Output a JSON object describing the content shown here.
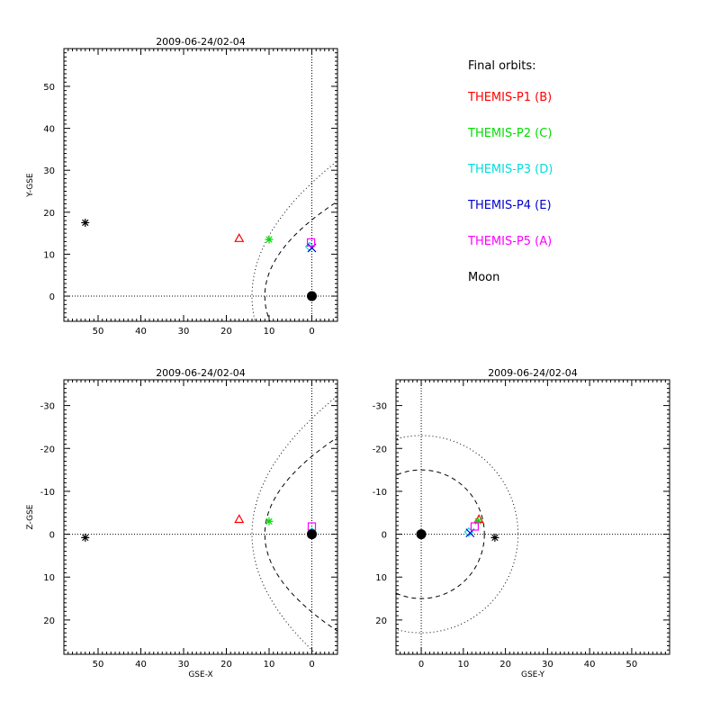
{
  "colors": {
    "axes": "#000000",
    "P1": "#ff0000",
    "P2": "#00dd00",
    "P3": "#00dddd",
    "P4": "#0000cc",
    "P5": "#ff00ff",
    "moon": "#000000",
    "earth": "#000000"
  },
  "legend": {
    "title": "Final orbits:",
    "items": [
      {
        "label": "THEMIS-P1 (B)",
        "color": "#ff0000"
      },
      {
        "label": "THEMIS-P2 (C)",
        "color": "#00dd00"
      },
      {
        "label": "THEMIS-P3 (D)",
        "color": "#00dddd"
      },
      {
        "label": "THEMIS-P4 (E)",
        "color": "#0000cc"
      },
      {
        "label": "THEMIS-P5 (A)",
        "color": "#ff00ff"
      },
      {
        "label": "Moon",
        "color": "#000000"
      }
    ]
  },
  "chart_data": [
    {
      "type": "scatter",
      "title": "2009-06-24/02-04",
      "xlabel": "",
      "ylabel": "Y-GSE",
      "xlim": [
        58,
        -6
      ],
      "ylim": [
        59,
        -6
      ],
      "xticks": [
        50,
        40,
        30,
        20,
        10,
        0
      ],
      "yticks": [
        0,
        10,
        20,
        30,
        40,
        50
      ],
      "points": [
        {
          "name": "THEMIS-P1",
          "marker": "triangle",
          "x": 17,
          "y": 13.8
        },
        {
          "name": "THEMIS-P2",
          "marker": "asterisk",
          "x": 10,
          "y": 13.5
        },
        {
          "name": "THEMIS-P3",
          "marker": "diamond",
          "x": 0.5,
          "y": 11.8
        },
        {
          "name": "THEMIS-P4",
          "marker": "x",
          "x": 0,
          "y": 11.5
        },
        {
          "name": "THEMIS-P5",
          "marker": "square",
          "x": 0.2,
          "y": 12.8
        },
        {
          "name": "Moon",
          "marker": "asterisk",
          "x": 53,
          "y": 17.5
        },
        {
          "name": "Earth",
          "marker": "dot",
          "x": 0,
          "y": 0
        }
      ],
      "curves": [
        "magnetopause",
        "bowshock"
      ]
    },
    {
      "type": "scatter",
      "title": "2009-06-24/02-04",
      "xlabel": "GSE-X",
      "ylabel": "Z-GSE",
      "xlim": [
        58,
        -6
      ],
      "ylim": [
        -36,
        28
      ],
      "xticks": [
        50,
        40,
        30,
        20,
        10,
        0
      ],
      "yticks": [
        20,
        10,
        0,
        -10,
        -20,
        -30
      ],
      "points": [
        {
          "name": "THEMIS-P1",
          "marker": "triangle",
          "x": 17,
          "y": -3.5
        },
        {
          "name": "THEMIS-P2",
          "marker": "asterisk",
          "x": 10,
          "y": -3
        },
        {
          "name": "THEMIS-P3",
          "marker": "diamond",
          "x": 0,
          "y": -0.5
        },
        {
          "name": "THEMIS-P4",
          "marker": "x",
          "x": 0,
          "y": -0.2
        },
        {
          "name": "THEMIS-P5",
          "marker": "square",
          "x": 0,
          "y": -1.8
        },
        {
          "name": "Moon",
          "marker": "asterisk",
          "x": 53,
          "y": 0.8
        },
        {
          "name": "Earth",
          "marker": "dot",
          "x": 0,
          "y": 0
        }
      ],
      "curves": [
        "magnetopause",
        "bowshock"
      ]
    },
    {
      "type": "scatter",
      "title": "2009-06-24/02-04",
      "xlabel": "GSE-Y",
      "ylabel": "",
      "xlim": [
        -6,
        59
      ],
      "ylim": [
        -36,
        28
      ],
      "xticks": [
        0,
        10,
        20,
        30,
        40,
        50
      ],
      "yticks": [
        20,
        10,
        0,
        -10,
        -20,
        -30
      ],
      "points": [
        {
          "name": "THEMIS-P1",
          "marker": "triangle",
          "x": 13.7,
          "y": -3.5
        },
        {
          "name": "THEMIS-P2",
          "marker": "asterisk",
          "x": 13.5,
          "y": -3
        },
        {
          "name": "THEMIS-P3",
          "marker": "diamond",
          "x": 11.3,
          "y": -0.5
        },
        {
          "name": "THEMIS-P4",
          "marker": "x",
          "x": 11.6,
          "y": -0.3
        },
        {
          "name": "THEMIS-P5",
          "marker": "square",
          "x": 12.7,
          "y": -1.8
        },
        {
          "name": "Moon",
          "marker": "asterisk",
          "x": 17.5,
          "y": 0.8
        },
        {
          "name": "Earth",
          "marker": "dot",
          "x": 0,
          "y": 0
        }
      ],
      "circles": [
        15,
        23
      ]
    }
  ]
}
